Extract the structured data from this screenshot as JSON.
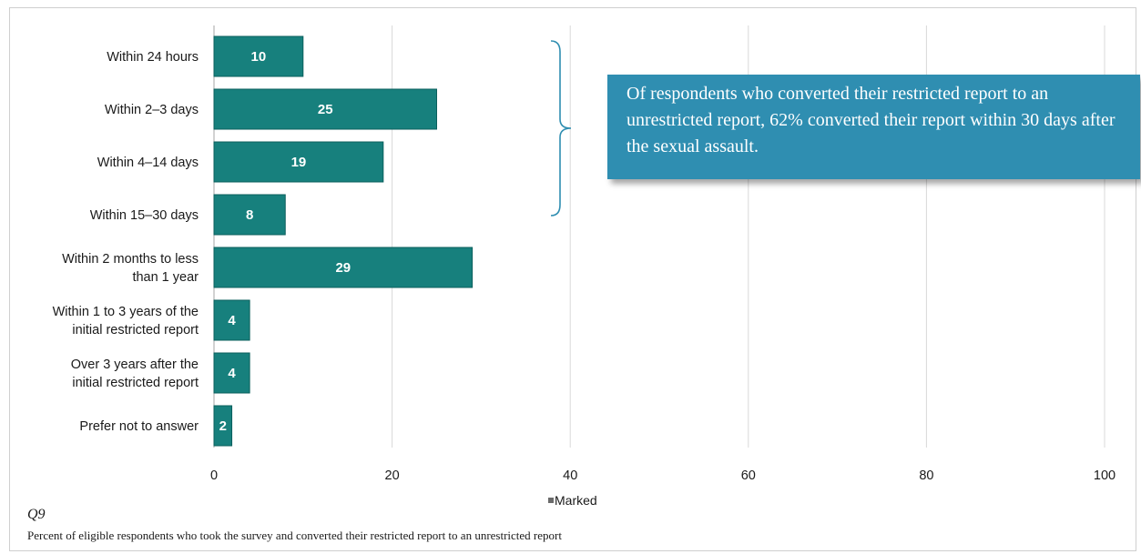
{
  "chart_data": {
    "type": "bar",
    "orientation": "horizontal",
    "categories": [
      [
        "Within 24 hours"
      ],
      [
        "Within 2–3 days"
      ],
      [
        "Within 4–14 days"
      ],
      [
        "Within 15–30 days"
      ],
      [
        "Within 2 months to less",
        "than 1 year"
      ],
      [
        "Within 1 to 3 years of the",
        "initial restricted report"
      ],
      [
        "Over 3 years after the",
        "initial restricted report"
      ],
      [
        "Prefer not to answer"
      ]
    ],
    "series": [
      {
        "name": "Marked",
        "values": [
          10,
          25,
          19,
          8,
          29,
          4,
          4,
          2
        ]
      }
    ],
    "xlim": [
      0,
      100
    ],
    "xticks": [
      0,
      20,
      40,
      60,
      80,
      100
    ],
    "grid": "vertical",
    "legend_position": "bottom",
    "colors": {
      "bar": "#17807d",
      "bar_border": "#0b5f5d",
      "bracket": "#2f8eb1",
      "grid": "#d9d9d9"
    }
  },
  "callout": {
    "text": "Of respondents who converted their restricted report to an unrestricted report, 62% converted their report within 30 days after the sexual assault."
  },
  "question_number": "Q9",
  "caption": "Percent of eligible respondents who took the survey and converted their restricted report to an unrestricted report"
}
